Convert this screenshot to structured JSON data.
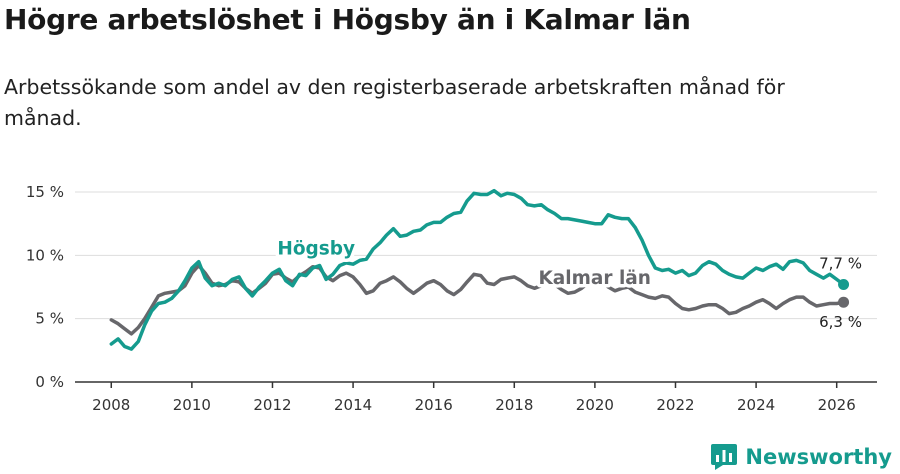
{
  "title": "Högre arbetslöshet i Högsby än i Kalmar län",
  "subtitle": "Arbetssökande som andel av den registerbaserade arbetskraften månad för månad.",
  "brand": {
    "name": "Newsworthy",
    "icon": "bar-chart-logo-icon",
    "color": "#159b8e"
  },
  "chart_data": {
    "type": "line",
    "title": "",
    "xlabel": "",
    "ylabel": "",
    "xlim": [
      2007.1,
      2027.0
    ],
    "ylim": [
      0,
      15
    ],
    "yticks": [
      0,
      5,
      10,
      15
    ],
    "yticklabels": [
      "0 %",
      "5 %",
      "10 %",
      "15 %"
    ],
    "xticks": [
      2008,
      2010,
      2012,
      2014,
      2016,
      2018,
      2020,
      2022,
      2024,
      2026
    ],
    "xticklabels": [
      "2008",
      "2010",
      "2012",
      "2014",
      "2016",
      "2018",
      "2020",
      "2022",
      "2024",
      "2026"
    ],
    "grid": true,
    "legend": "inline labels",
    "series": [
      {
        "name": "Kalmar län",
        "color": "#67676b",
        "end_label": "6,3 %",
        "x": [
          2008.0,
          2008.17,
          2008.33,
          2008.5,
          2008.67,
          2008.83,
          2009.0,
          2009.17,
          2009.33,
          2009.5,
          2009.67,
          2009.83,
          2010.0,
          2010.17,
          2010.33,
          2010.5,
          2010.67,
          2010.83,
          2011.0,
          2011.17,
          2011.33,
          2011.5,
          2011.67,
          2011.83,
          2012.0,
          2012.17,
          2012.33,
          2012.5,
          2012.67,
          2012.83,
          2013.0,
          2013.17,
          2013.33,
          2013.5,
          2013.67,
          2013.83,
          2014.0,
          2014.17,
          2014.33,
          2014.5,
          2014.67,
          2014.83,
          2015.0,
          2015.17,
          2015.33,
          2015.5,
          2015.67,
          2015.83,
          2016.0,
          2016.17,
          2016.33,
          2016.5,
          2016.67,
          2016.83,
          2017.0,
          2017.17,
          2017.33,
          2017.5,
          2017.67,
          2017.83,
          2018.0,
          2018.17,
          2018.33,
          2018.5,
          2018.67,
          2018.83,
          2019.0,
          2019.17,
          2019.33,
          2019.5,
          2019.67,
          2019.83,
          2020.0,
          2020.17,
          2020.33,
          2020.5,
          2020.67,
          2020.83,
          2021.0,
          2021.17,
          2021.33,
          2021.5,
          2021.67,
          2021.83,
          2022.0,
          2022.17,
          2022.33,
          2022.5,
          2022.67,
          2022.83,
          2023.0,
          2023.17,
          2023.33,
          2023.5,
          2023.67,
          2023.83,
          2024.0,
          2024.17,
          2024.33,
          2024.5,
          2024.67,
          2024.83,
          2025.0,
          2025.17,
          2025.33,
          2025.5,
          2025.67,
          2025.83,
          2026.0,
          2026.17
        ],
        "y": [
          4.9,
          4.6,
          4.2,
          3.8,
          4.3,
          5.0,
          5.9,
          6.8,
          7.0,
          7.1,
          7.2,
          7.6,
          8.6,
          9.2,
          8.6,
          7.8,
          7.6,
          7.7,
          8.0,
          7.9,
          7.4,
          7.0,
          7.4,
          7.8,
          8.5,
          8.6,
          8.2,
          7.9,
          8.4,
          8.7,
          9.1,
          9.0,
          8.3,
          8.0,
          8.4,
          8.6,
          8.3,
          7.7,
          7.0,
          7.2,
          7.8,
          8.0,
          8.3,
          7.9,
          7.4,
          7.0,
          7.4,
          7.8,
          8.0,
          7.7,
          7.2,
          6.9,
          7.3,
          7.9,
          8.5,
          8.4,
          7.8,
          7.7,
          8.1,
          8.2,
          8.3,
          8.0,
          7.6,
          7.4,
          7.6,
          7.8,
          7.7,
          7.3,
          7.0,
          7.1,
          7.4,
          7.8,
          8.0,
          7.9,
          7.5,
          7.2,
          7.4,
          7.5,
          7.1,
          6.9,
          6.7,
          6.6,
          6.8,
          6.7,
          6.2,
          5.8,
          5.7,
          5.8,
          6.0,
          6.1,
          6.1,
          5.8,
          5.4,
          5.5,
          5.8,
          6.0,
          6.3,
          6.5,
          6.2,
          5.8,
          6.2,
          6.5,
          6.7,
          6.7,
          6.3,
          6.0,
          6.1,
          6.2,
          6.2,
          6.3
        ]
      },
      {
        "name": "Högsby",
        "color": "#159b8e",
        "end_label": "7,7 %",
        "x": [
          2008.0,
          2008.17,
          2008.33,
          2008.5,
          2008.67,
          2008.83,
          2009.0,
          2009.17,
          2009.33,
          2009.5,
          2009.67,
          2009.83,
          2010.0,
          2010.17,
          2010.33,
          2010.5,
          2010.67,
          2010.83,
          2011.0,
          2011.17,
          2011.33,
          2011.5,
          2011.67,
          2011.83,
          2012.0,
          2012.17,
          2012.33,
          2012.5,
          2012.67,
          2012.83,
          2013.0,
          2013.17,
          2013.33,
          2013.5,
          2013.67,
          2013.83,
          2014.0,
          2014.17,
          2014.33,
          2014.5,
          2014.67,
          2014.83,
          2015.0,
          2015.17,
          2015.33,
          2015.5,
          2015.67,
          2015.83,
          2016.0,
          2016.17,
          2016.33,
          2016.5,
          2016.67,
          2016.83,
          2017.0,
          2017.17,
          2017.33,
          2017.5,
          2017.67,
          2017.83,
          2018.0,
          2018.17,
          2018.33,
          2018.5,
          2018.67,
          2018.83,
          2019.0,
          2019.17,
          2019.33,
          2019.5,
          2019.67,
          2019.83,
          2020.0,
          2020.17,
          2020.33,
          2020.5,
          2020.67,
          2020.83,
          2021.0,
          2021.17,
          2021.33,
          2021.5,
          2021.67,
          2021.83,
          2022.0,
          2022.17,
          2022.33,
          2022.5,
          2022.67,
          2022.83,
          2023.0,
          2023.17,
          2023.33,
          2023.5,
          2023.67,
          2023.83,
          2024.0,
          2024.17,
          2024.33,
          2024.5,
          2024.67,
          2024.83,
          2025.0,
          2025.17,
          2025.33,
          2025.5,
          2025.67,
          2025.83,
          2026.0,
          2026.17
        ],
        "y": [
          3.0,
          3.4,
          2.8,
          2.6,
          3.2,
          4.5,
          5.6,
          6.2,
          6.3,
          6.6,
          7.2,
          8.0,
          9.0,
          9.5,
          8.2,
          7.6,
          7.8,
          7.6,
          8.1,
          8.3,
          7.4,
          6.8,
          7.5,
          8.0,
          8.6,
          8.9,
          8.0,
          7.6,
          8.5,
          8.4,
          9.0,
          9.2,
          8.1,
          8.5,
          9.2,
          9.4,
          9.3,
          9.6,
          9.7,
          10.5,
          11.0,
          11.6,
          12.1,
          11.5,
          11.6,
          11.9,
          12.0,
          12.4,
          12.6,
          12.6,
          13.0,
          13.3,
          13.4,
          14.3,
          14.9,
          14.8,
          14.8,
          15.1,
          14.7,
          14.9,
          14.8,
          14.5,
          14.0,
          13.9,
          14.0,
          13.6,
          13.3,
          12.9,
          12.9,
          12.8,
          12.7,
          12.6,
          12.5,
          12.5,
          13.2,
          13.0,
          12.9,
          12.9,
          12.2,
          11.2,
          10.0,
          9.0,
          8.8,
          8.9,
          8.6,
          8.8,
          8.4,
          8.6,
          9.2,
          9.5,
          9.3,
          8.8,
          8.5,
          8.3,
          8.2,
          8.6,
          9.0,
          8.8,
          9.1,
          9.3,
          8.9,
          9.5,
          9.6,
          9.4,
          8.8,
          8.5,
          8.2,
          8.5,
          8.1,
          7.7
        ]
      }
    ],
    "annotations": [
      {
        "text": "Högsby",
        "series": "Högsby"
      },
      {
        "text": "Kalmar län",
        "series": "Kalmar län"
      }
    ]
  }
}
